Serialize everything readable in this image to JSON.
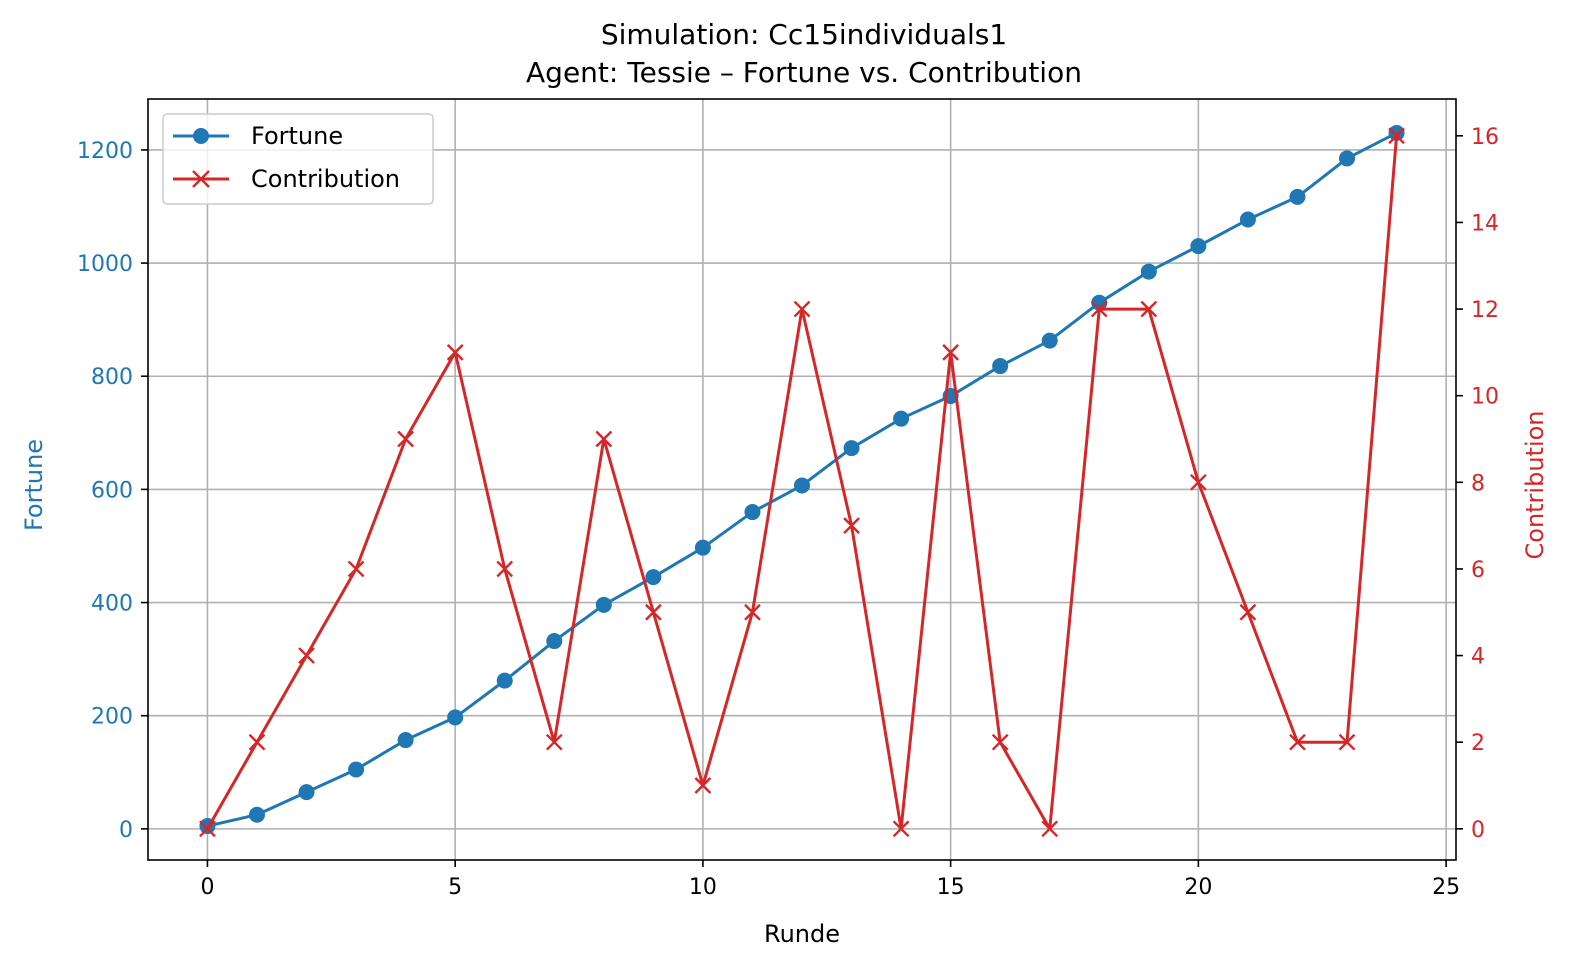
{
  "chart_data": {
    "type": "line",
    "title_line1": "Simulation: Cc15individuals1",
    "title_line2": "Agent: Tessie – Fortune vs. Contribution",
    "xlabel": "Runde",
    "ylabel_left": "Fortune",
    "ylabel_right": "Contribution",
    "xlim": [
      -1.2,
      25.2
    ],
    "ylim_left": [
      -55,
      1290
    ],
    "ylim_right": [
      -0.72,
      16.85
    ],
    "x_ticks": [
      0,
      5,
      10,
      15,
      20,
      25
    ],
    "y_left_ticks": [
      0,
      200,
      400,
      600,
      800,
      1000,
      1200
    ],
    "y_right_ticks": [
      0,
      2,
      4,
      6,
      8,
      10,
      12,
      14,
      16
    ],
    "grid": true,
    "legend_position": "upper-left",
    "x": [
      0,
      1,
      2,
      3,
      4,
      5,
      6,
      7,
      8,
      9,
      10,
      11,
      12,
      13,
      14,
      15,
      16,
      17,
      18,
      19,
      20,
      21,
      22,
      23,
      24
    ],
    "series": [
      {
        "name": "Fortune",
        "axis": "left",
        "color": "#1f77b4",
        "marker": "circle",
        "values": [
          5,
          25,
          65,
          105,
          157,
          197,
          262,
          332,
          396,
          445,
          497,
          560,
          607,
          673,
          725,
          765,
          818,
          863,
          930,
          985,
          1030,
          1077,
          1117,
          1185,
          1230
        ]
      },
      {
        "name": "Contribution",
        "axis": "right",
        "color": "#d62728",
        "marker": "x",
        "values": [
          0,
          2,
          4,
          6,
          9,
          11,
          6,
          2,
          9,
          5,
          1,
          5,
          12,
          7,
          0,
          11,
          2,
          0,
          12,
          12,
          8,
          5,
          2,
          2,
          16
        ]
      }
    ]
  }
}
